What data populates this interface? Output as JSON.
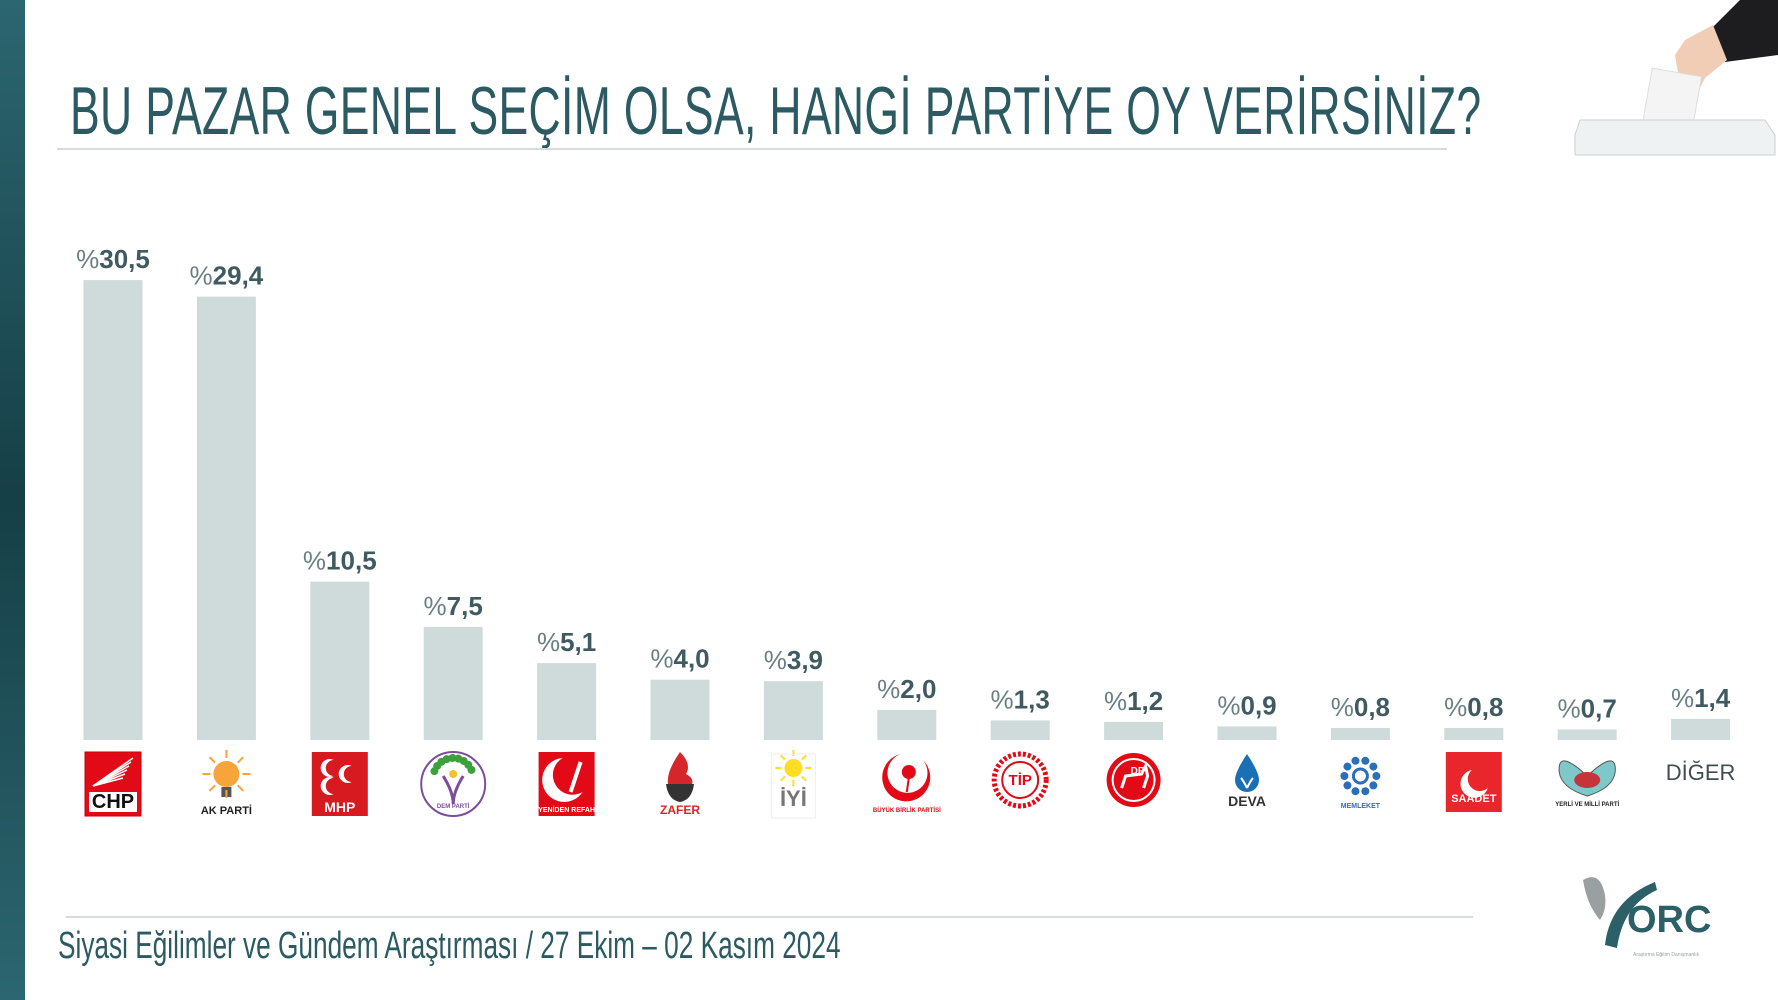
{
  "title": "BU PAZAR GENEL SEÇİM OLSA, HANGİ PARTİYE OY VERİRSİNİZ?",
  "footer": "Siyasi Eğilimler ve Gündem Araştırması / 27 Ekim – 02 Kasım 2024",
  "brand": {
    "logo_text": "ORC",
    "logo_subtext": "Araştırma Eğitim Danışmanlık"
  },
  "colors": {
    "title": "#2b5a62",
    "bar": "#cfdbdb",
    "label": "#3f5b61",
    "accent_bar": "#1f4f58"
  },
  "chart_data": {
    "type": "bar",
    "title": "BU PAZAR GENEL SEÇİM OLSA, HANGİ PARTİYE OY VERİRSİNİZ?",
    "xlabel": "",
    "ylabel": "",
    "ylim": [
      0,
      31
    ],
    "grid": false,
    "value_prefix": "%",
    "categories": [
      "CHP",
      "AK PARTİ",
      "MHP",
      "DEM PARTİ",
      "YENİDEN REFAH",
      "ZAFER PARTİSİ",
      "İYİ PARTİ",
      "BÜYÜK BİRLİK PARTİSİ",
      "TİP",
      "DEMOKRAT PARTİ",
      "DEVA PARTİSİ",
      "MEMLEKET PARTİSİ",
      "SAADET",
      "YERLİ VE MİLLİ PARTİ",
      "DİĞER"
    ],
    "values": [
      30.5,
      29.4,
      10.5,
      7.5,
      5.1,
      4.0,
      3.9,
      2.0,
      1.3,
      1.2,
      0.9,
      0.8,
      0.8,
      0.7,
      1.4
    ],
    "labels": [
      "%30,5",
      "%29,4",
      "%10,5",
      "%7,5",
      "%5,1",
      "%4,0",
      "%3,9",
      "%2,0",
      "%1,3",
      "%1,2",
      "%0,9",
      "%0,8",
      "%0,8",
      "%0,7",
      "%1,4"
    ]
  }
}
